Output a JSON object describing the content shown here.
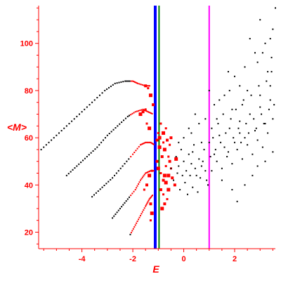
{
  "chart_data": {
    "type": "scatter",
    "xlabel": "E",
    "ylabel": "<M>",
    "xlim": [
      -5.7,
      3.6
    ],
    "ylim": [
      13,
      116
    ],
    "xticks": [
      -4,
      -2,
      0,
      2
    ],
    "yticks": [
      20,
      40,
      60,
      80,
      100
    ],
    "grid": false,
    "colors": {
      "axis": "#ff0000",
      "black_points": "#000000",
      "red_points": "#ff0000",
      "line_blue": "#0000ff",
      "line_green": "#008000",
      "line_magenta": "#ff00ff"
    },
    "vertical_lines": [
      {
        "x": -1.12,
        "color": "#0000ff"
      },
      {
        "x": -0.97,
        "color": "#008000"
      },
      {
        "x": 1.0,
        "color": "#ff00ff"
      }
    ],
    "curves": [
      {
        "points": [
          [
            -5.6,
            55
          ],
          [
            -5.1,
            60
          ],
          [
            -4.6,
            65
          ],
          [
            -4.1,
            70
          ],
          [
            -3.6,
            75
          ],
          [
            -3.1,
            80
          ],
          [
            -2.7,
            83
          ],
          [
            -2.3,
            84
          ],
          [
            -2.0,
            84
          ],
          [
            -1.8,
            83
          ],
          [
            -1.5,
            82
          ],
          [
            -1.3,
            82
          ]
        ]
      },
      {
        "points": [
          [
            -4.6,
            44
          ],
          [
            -4.2,
            48
          ],
          [
            -3.8,
            52
          ],
          [
            -3.4,
            56
          ],
          [
            -3.0,
            61
          ],
          [
            -2.6,
            65
          ],
          [
            -2.2,
            69
          ],
          [
            -1.9,
            71
          ],
          [
            -1.6,
            72
          ],
          [
            -1.4,
            71
          ],
          [
            -1.2,
            70
          ]
        ]
      },
      {
        "points": [
          [
            -3.6,
            35
          ],
          [
            -3.2,
            39
          ],
          [
            -2.8,
            43
          ],
          [
            -2.4,
            48
          ],
          [
            -2.0,
            53
          ],
          [
            -1.7,
            57
          ],
          [
            -1.5,
            58
          ],
          [
            -1.3,
            58
          ],
          [
            -1.15,
            57
          ]
        ]
      },
      {
        "points": [
          [
            -2.8,
            26
          ],
          [
            -2.5,
            30
          ],
          [
            -2.2,
            34
          ],
          [
            -1.9,
            38
          ],
          [
            -1.7,
            42
          ],
          [
            -1.5,
            45
          ],
          [
            -1.3,
            46
          ],
          [
            -1.15,
            46
          ]
        ]
      },
      {
        "points": [
          [
            -2.1,
            19
          ],
          [
            -1.9,
            23
          ],
          [
            -1.7,
            27
          ],
          [
            -1.5,
            31
          ],
          [
            -1.35,
            34
          ],
          [
            -1.2,
            36
          ]
        ]
      }
    ],
    "red_scatter": [
      [
        -1.55,
        38
      ],
      [
        -1.45,
        40
      ],
      [
        -1.35,
        44
      ],
      [
        -1.25,
        46
      ],
      [
        -1.05,
        50
      ],
      [
        -1.0,
        47
      ],
      [
        -0.9,
        45
      ],
      [
        -0.8,
        42
      ],
      [
        -0.75,
        44
      ],
      [
        -0.7,
        48
      ],
      [
        -0.85,
        52
      ],
      [
        -0.75,
        55
      ],
      [
        -0.8,
        58
      ],
      [
        -0.65,
        59
      ],
      [
        -0.95,
        56
      ],
      [
        -0.6,
        52
      ],
      [
        -0.55,
        50
      ],
      [
        -0.7,
        41
      ],
      [
        -0.8,
        36
      ],
      [
        -0.75,
        32
      ],
      [
        -0.85,
        30
      ],
      [
        -0.65,
        34
      ],
      [
        -1.3,
        32
      ],
      [
        -1.25,
        28
      ],
      [
        -1.3,
        25
      ],
      [
        -0.9,
        38
      ],
      [
        -0.6,
        44
      ],
      [
        -0.5,
        47
      ],
      [
        -0.45,
        43
      ],
      [
        -0.95,
        60
      ],
      [
        -1.0,
        62
      ],
      [
        -1.05,
        59
      ],
      [
        -0.8,
        62
      ],
      [
        -0.7,
        64
      ],
      [
        -1.2,
        74
      ],
      [
        -1.3,
        78
      ],
      [
        -1.4,
        81
      ],
      [
        -1.5,
        82
      ],
      [
        -0.6,
        38
      ],
      [
        -0.55,
        57
      ],
      [
        -0.5,
        60
      ],
      [
        -1.35,
        64
      ],
      [
        -1.45,
        66
      ],
      [
        -1.6,
        71
      ],
      [
        -1.7,
        70
      ],
      [
        -1.5,
        72
      ],
      [
        -0.35,
        40
      ],
      [
        -0.3,
        51
      ],
      [
        -0.9,
        66
      ]
    ],
    "black_scatter": [
      [
        -0.5,
        47
      ],
      [
        -0.3,
        52
      ],
      [
        -0.2,
        48
      ],
      [
        -0.1,
        55
      ],
      [
        0.0,
        50
      ],
      [
        0.1,
        46
      ],
      [
        0.2,
        53
      ],
      [
        0.3,
        49
      ],
      [
        0.4,
        57
      ],
      [
        0.5,
        44
      ],
      [
        0.6,
        51
      ],
      [
        0.7,
        48
      ],
      [
        0.8,
        55
      ],
      [
        0.9,
        42
      ],
      [
        1.0,
        58
      ],
      [
        1.1,
        46
      ],
      [
        1.2,
        53
      ],
      [
        1.3,
        50
      ],
      [
        1.4,
        61
      ],
      [
        1.5,
        47
      ],
      [
        1.6,
        56
      ],
      [
        1.7,
        52
      ],
      [
        1.8,
        64
      ],
      [
        1.9,
        49
      ],
      [
        2.0,
        58
      ],
      [
        2.1,
        55
      ],
      [
        2.2,
        67
      ],
      [
        2.3,
        51
      ],
      [
        2.4,
        60
      ],
      [
        2.5,
        57
      ],
      [
        2.6,
        70
      ],
      [
        2.7,
        53
      ],
      [
        2.8,
        63
      ],
      [
        2.9,
        59
      ],
      [
        3.0,
        73
      ],
      [
        3.1,
        56
      ],
      [
        3.2,
        66
      ],
      [
        3.3,
        62
      ],
      [
        3.4,
        76
      ],
      [
        3.5,
        68
      ],
      [
        -0.4,
        42
      ],
      [
        -0.25,
        45
      ],
      [
        -0.15,
        38
      ],
      [
        0.05,
        41
      ],
      [
        0.15,
        36
      ],
      [
        0.25,
        44
      ],
      [
        0.35,
        39
      ],
      [
        0.45,
        47
      ],
      [
        0.55,
        37
      ],
      [
        0.65,
        43
      ],
      [
        0.75,
        50
      ],
      [
        0.85,
        46
      ],
      [
        0.95,
        40
      ],
      [
        1.05,
        52
      ],
      [
        1.15,
        60
      ],
      [
        1.25,
        55
      ],
      [
        1.35,
        66
      ],
      [
        1.45,
        58
      ],
      [
        1.55,
        70
      ],
      [
        1.65,
        62
      ],
      [
        1.75,
        54
      ],
      [
        1.85,
        68
      ],
      [
        1.95,
        60
      ],
      [
        2.05,
        72
      ],
      [
        2.15,
        64
      ],
      [
        2.25,
        58
      ],
      [
        2.35,
        76
      ],
      [
        2.45,
        66
      ],
      [
        2.55,
        62
      ],
      [
        2.65,
        78
      ],
      [
        2.75,
        68
      ],
      [
        2.85,
        64
      ],
      [
        2.95,
        82
      ],
      [
        3.05,
        70
      ],
      [
        3.15,
        66
      ],
      [
        3.25,
        84
      ],
      [
        3.35,
        72
      ],
      [
        3.45,
        88
      ],
      [
        3.55,
        74
      ],
      [
        3.1,
        96
      ],
      [
        3.4,
        102
      ],
      [
        3.5,
        106
      ],
      [
        3.6,
        115
      ],
      [
        3.0,
        110
      ],
      [
        2.2,
        82
      ],
      [
        1.8,
        80
      ],
      [
        1.4,
        76
      ],
      [
        1.0,
        80
      ],
      [
        0.6,
        66
      ],
      [
        0.3,
        62
      ],
      [
        0.0,
        60
      ],
      [
        -0.2,
        58
      ],
      [
        2.6,
        102
      ],
      [
        2.9,
        92
      ],
      [
        3.2,
        100
      ],
      [
        1.2,
        74
      ],
      [
        1.6,
        78
      ],
      [
        2.0,
        86
      ],
      [
        2.4,
        90
      ],
      [
        2.8,
        96
      ],
      [
        3.3,
        88
      ],
      [
        3.45,
        94
      ],
      [
        2.1,
        33
      ],
      [
        2.4,
        40
      ],
      [
        2.7,
        44
      ],
      [
        1.9,
        38
      ],
      [
        1.5,
        42
      ],
      [
        3.2,
        50
      ],
      [
        3.5,
        54
      ],
      [
        2.9,
        48
      ],
      [
        0.2,
        64
      ],
      [
        0.45,
        70
      ],
      [
        0.85,
        68
      ],
      [
        1.75,
        88
      ],
      [
        2.3,
        74
      ],
      [
        -0.05,
        44
      ],
      [
        0.35,
        54
      ],
      [
        0.7,
        58
      ],
      [
        1.1,
        64
      ],
      [
        1.9,
        72
      ],
      [
        2.5,
        80
      ],
      [
        3.0,
        78
      ],
      [
        3.4,
        82
      ],
      [
        2.2,
        62
      ],
      [
        1.3,
        68
      ]
    ]
  }
}
